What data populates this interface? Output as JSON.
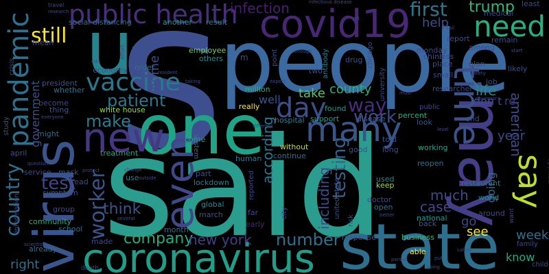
{
  "words": [
    {
      "text": "said",
      "color": "#2a9d8f"
    },
    {
      "text": "people",
      "color": "#3b6aa0"
    },
    {
      "text": "s",
      "color": "#3e4f8f"
    },
    {
      "text": "state",
      "color": "#2e6f8e"
    },
    {
      "text": "one",
      "color": "#20a386"
    },
    {
      "text": "may",
      "color": "#433e85"
    },
    {
      "text": "coronavirus",
      "color": "#1f9e89"
    },
    {
      "text": "virus",
      "color": "#3a548c"
    },
    {
      "text": "u",
      "color": "#25858e"
    },
    {
      "text": "covid19",
      "color": "#482777"
    },
    {
      "text": "public health",
      "color": "#472f7d"
    },
    {
      "text": "pandemic",
      "color": "#2c728e"
    },
    {
      "text": "new",
      "color": "#453781"
    },
    {
      "text": "many",
      "color": "#39568c"
    },
    {
      "text": "even",
      "color": "#3f4889"
    },
    {
      "text": "say",
      "color": "#bddf26"
    },
    {
      "text": "vaccine",
      "color": "#2a788e"
    },
    {
      "text": "day",
      "color": "#3c4f8a"
    },
    {
      "text": "time",
      "color": "#3b528b"
    },
    {
      "text": "need",
      "color": "#29af7f"
    },
    {
      "text": "still",
      "color": "#fde725"
    },
    {
      "text": "trump",
      "color": "#34b679"
    },
    {
      "text": "first",
      "color": "#2a788e"
    },
    {
      "text": "country",
      "color": "#2d708e"
    },
    {
      "text": "worker",
      "color": "#3a538b"
    },
    {
      "text": "test",
      "color": "#3f4788"
    },
    {
      "text": "testing",
      "color": "#34618d"
    },
    {
      "text": "way",
      "color": "#472d7b"
    },
    {
      "text": "work",
      "color": "#3e4989"
    },
    {
      "text": "patient",
      "color": "#2a788e"
    },
    {
      "text": "make",
      "color": "#287d8e"
    },
    {
      "text": "think",
      "color": "#3b528b"
    },
    {
      "text": "company",
      "color": "#25ab82"
    },
    {
      "text": "number",
      "color": "#2c728e"
    },
    {
      "text": "new york",
      "color": "#433e85"
    },
    {
      "text": "county",
      "color": "#29af7f"
    },
    {
      "text": "according",
      "color": "#2a788e"
    },
    {
      "text": "including",
      "color": "#3d4d8a"
    },
    {
      "text": "much",
      "color": "#3e4a89"
    },
    {
      "text": "case",
      "color": "#3e4a89"
    },
    {
      "text": "go",
      "color": "#3f4788"
    },
    {
      "text": "see",
      "color": "#fde725"
    },
    {
      "text": "american",
      "color": "#3e4a89"
    },
    {
      "text": "life",
      "color": "#238a8d"
    },
    {
      "text": "year",
      "color": "#3e4a89"
    },
    {
      "text": "week",
      "color": "#2d718e"
    },
    {
      "text": "know",
      "color": "#22a884"
    },
    {
      "text": "going",
      "color": "#2f6c8e"
    },
    {
      "text": "help",
      "color": "#3c4f8a"
    },
    {
      "text": "home",
      "color": "#3d4e8a"
    },
    {
      "text": "infection",
      "color": "#481f70"
    },
    {
      "text": "well",
      "color": "#39568c"
    },
    {
      "text": "take",
      "color": "#56c667"
    },
    {
      "text": "don t",
      "color": "#3c4f8a"
    },
    {
      "text": "government",
      "color": "#3b528b"
    },
    {
      "text": "right",
      "color": "#2d708e"
    },
    {
      "text": "outbreak",
      "color": "#3b528b"
    },
    {
      "text": "data",
      "color": "#2c728e"
    },
    {
      "text": "re",
      "color": "#453581"
    },
    {
      "text": "m",
      "color": "#3c4f8a"
    },
    {
      "text": "white house",
      "color": "#8fd744"
    },
    {
      "text": "social distancing",
      "color": "#2e6e8e"
    },
    {
      "text": "employee",
      "color": "#73d056"
    },
    {
      "text": "others",
      "color": "#238a8d"
    },
    {
      "text": "another",
      "color": "#1f978b"
    },
    {
      "text": "come",
      "color": "#20a386"
    },
    {
      "text": "result",
      "color": "#287d8e"
    },
    {
      "text": "system",
      "color": "#2c728e"
    },
    {
      "text": "hospital",
      "color": "#26828e"
    },
    {
      "text": "disease",
      "color": "#34618d"
    },
    {
      "text": "percent",
      "color": "#29af7f"
    },
    {
      "text": "found",
      "color": "#1f968b"
    },
    {
      "text": "support",
      "color": "#1f9e89"
    },
    {
      "text": "without",
      "color": "#bddf26"
    },
    {
      "text": "continue",
      "color": "#2e6e8e"
    },
    {
      "text": "told",
      "color": "#39568c"
    },
    {
      "text": "good",
      "color": "#3d4e8a"
    },
    {
      "text": "long",
      "color": "#3e4a89"
    },
    {
      "text": "working",
      "color": "#20a386"
    },
    {
      "text": "reopen",
      "color": "#2c728e"
    },
    {
      "text": "look",
      "color": "#3b528b"
    },
    {
      "text": "end",
      "color": "#3b528b"
    },
    {
      "text": "restaurant",
      "color": "#2a788e"
    },
    {
      "text": "world",
      "color": "#25858e"
    },
    {
      "text": "around",
      "color": "#3c4f8a"
    },
    {
      "text": "national",
      "color": "#1f968b"
    },
    {
      "text": "back",
      "color": "#3a548c"
    },
    {
      "text": "open",
      "color": "#2c728e"
    },
    {
      "text": "doctor",
      "color": "#3c4f8a"
    },
    {
      "text": "used",
      "color": "#25858e"
    },
    {
      "text": "keep",
      "color": "#a0da39"
    },
    {
      "text": "business",
      "color": "#35b779"
    },
    {
      "text": "response",
      "color": "#39568c"
    },
    {
      "text": "able",
      "color": "#fde725"
    },
    {
      "text": "really",
      "color": "#fde725"
    },
    {
      "text": "far",
      "color": "#3e4a89"
    },
    {
      "text": "early",
      "color": "#482878"
    },
    {
      "text": "march",
      "color": "#3a538b"
    },
    {
      "text": "global",
      "color": "#238a8d"
    },
    {
      "text": "month",
      "color": "#2d718e"
    },
    {
      "text": "made",
      "color": "#3e4989"
    },
    {
      "text": "already",
      "color": "#2e6e8e"
    },
    {
      "text": "school",
      "color": "#2d708e"
    },
    {
      "text": "community",
      "color": "#29af7f"
    },
    {
      "text": "group",
      "color": "#3e4a89"
    },
    {
      "text": "mask",
      "color": "#3b528b"
    },
    {
      "text": "service",
      "color": "#3e4a89"
    },
    {
      "text": "april",
      "color": "#3b528b"
    },
    {
      "text": "might",
      "color": "#2e6e8e"
    },
    {
      "text": "treatment",
      "color": "#20a386"
    },
    {
      "text": "lockdown",
      "color": "#287d8e"
    },
    {
      "text": "part",
      "color": "#3b528b"
    },
    {
      "text": "use",
      "color": "#2a788e"
    },
    {
      "text": "human",
      "color": "#2a788e"
    },
    {
      "text": "reported",
      "color": "#3e4a89"
    },
    {
      "text": "city",
      "color": "#3e4a89"
    },
    {
      "text": "united state",
      "color": "#3b528b"
    },
    {
      "text": "risk",
      "color": "#3e4a89"
    },
    {
      "text": "drug",
      "color": "#3b528b"
    },
    {
      "text": "antibody",
      "color": "#287d8e"
    },
    {
      "text": "two",
      "color": "#3e4a89"
    },
    {
      "text": "point",
      "color": "#3b528b"
    },
    {
      "text": "million",
      "color": "#29af7f"
    },
    {
      "text": "thing",
      "color": "#3a548c"
    },
    {
      "text": "become",
      "color": "#3e4a89"
    },
    {
      "text": "economy",
      "color": "#3b528b"
    },
    {
      "text": "order",
      "color": "#2e6e8e"
    },
    {
      "text": "show",
      "color": "#3b528b"
    },
    {
      "text": "president",
      "color": "#3b528b"
    },
    {
      "text": "whether",
      "color": "#2c728e"
    },
    {
      "text": "mean",
      "color": "#3e4a89"
    },
    {
      "text": "crisis",
      "color": "#3e4a89"
    },
    {
      "text": "symptom",
      "color": "#3e4a89"
    },
    {
      "text": "read",
      "color": "#3e4a89"
    },
    {
      "text": "information",
      "color": "#3e4a89"
    },
    {
      "text": "study",
      "color": "#3b528b"
    },
    {
      "text": "university",
      "color": "#3e4a89"
    },
    {
      "text": "chicago",
      "color": "#3e4a89"
    },
    {
      "text": "monday",
      "color": "#3e4a89"
    },
    {
      "text": "report",
      "color": "#3e4a89"
    },
    {
      "text": "china",
      "color": "#3e4a89"
    },
    {
      "text": "less",
      "color": "#3e4a89"
    },
    {
      "text": "place",
      "color": "#3e4a89"
    },
    {
      "text": "small",
      "color": "#3e4a89"
    },
    {
      "text": "researcher",
      "color": "#3e4a89"
    },
    {
      "text": "plan",
      "color": "#3e4a89"
    },
    {
      "text": "among",
      "color": "#3e4a89"
    },
    {
      "text": "remain",
      "color": "#3e4a89"
    },
    {
      "text": "likely",
      "color": "#3e4a89"
    },
    {
      "text": "medical",
      "color": "#3e4a89"
    },
    {
      "text": "job",
      "color": "#3e4a89"
    },
    {
      "text": "provide",
      "color": "#3e4a89"
    },
    {
      "text": "want",
      "color": "#3e4a89"
    },
    {
      "text": "family",
      "color": "#3e4a89"
    },
    {
      "text": "child",
      "color": "#3e4a89"
    },
    {
      "text": "least",
      "color": "#3e4a89"
    },
    {
      "text": "travel",
      "color": "#3e4a89"
    },
    {
      "text": "research",
      "color": "#3e4a89"
    },
    {
      "text": "infectious disease",
      "color": "#3e4a89"
    },
    {
      "text": "effort",
      "color": "#3e4a89"
    },
    {
      "text": "cdc",
      "color": "#3e4a89"
    },
    {
      "text": "expert",
      "color": "#3e4a89"
    },
    {
      "text": "enough",
      "color": "#3e4a89"
    },
    {
      "text": "taking",
      "color": "#3e4a89"
    },
    {
      "text": "announced",
      "color": "#3e4a89"
    },
    {
      "text": "must",
      "color": "#3e4a89"
    },
    {
      "text": "governor",
      "color": "#3e4a89"
    },
    {
      "text": "safety",
      "color": "#3e4a89"
    },
    {
      "text": "start",
      "color": "#3e4a89"
    },
    {
      "text": "call",
      "color": "#3e4a89"
    },
    {
      "text": "different",
      "color": "#3e4a89"
    },
    {
      "text": "level",
      "color": "#3e4a89"
    },
    {
      "text": "public",
      "color": "#3e4a89"
    },
    {
      "text": "better",
      "color": "#3e4a89"
    },
    {
      "text": "question",
      "color": "#3e4a89"
    },
    {
      "text": "protect",
      "color": "#3e4a89"
    },
    {
      "text": "change",
      "color": "#3e4a89"
    },
    {
      "text": "outside",
      "color": "#3e4a89"
    },
    {
      "text": "several",
      "color": "#3e4a89"
    },
    {
      "text": "scientist",
      "color": "#3e4a89"
    },
    {
      "text": "death",
      "color": "#3e4a89"
    },
    {
      "text": "called",
      "color": "#3e4a89"
    },
    {
      "text": "using",
      "color": "#3e4a89"
    },
    {
      "text": "put",
      "color": "#3e4a89"
    },
    {
      "text": "person",
      "color": "#3e4a89"
    },
    {
      "text": "everyone",
      "color": "#3e4a89"
    },
    {
      "text": "yet",
      "color": "#3e4a89"
    },
    {
      "text": "resident",
      "color": "#3e4a89"
    }
  ]
}
